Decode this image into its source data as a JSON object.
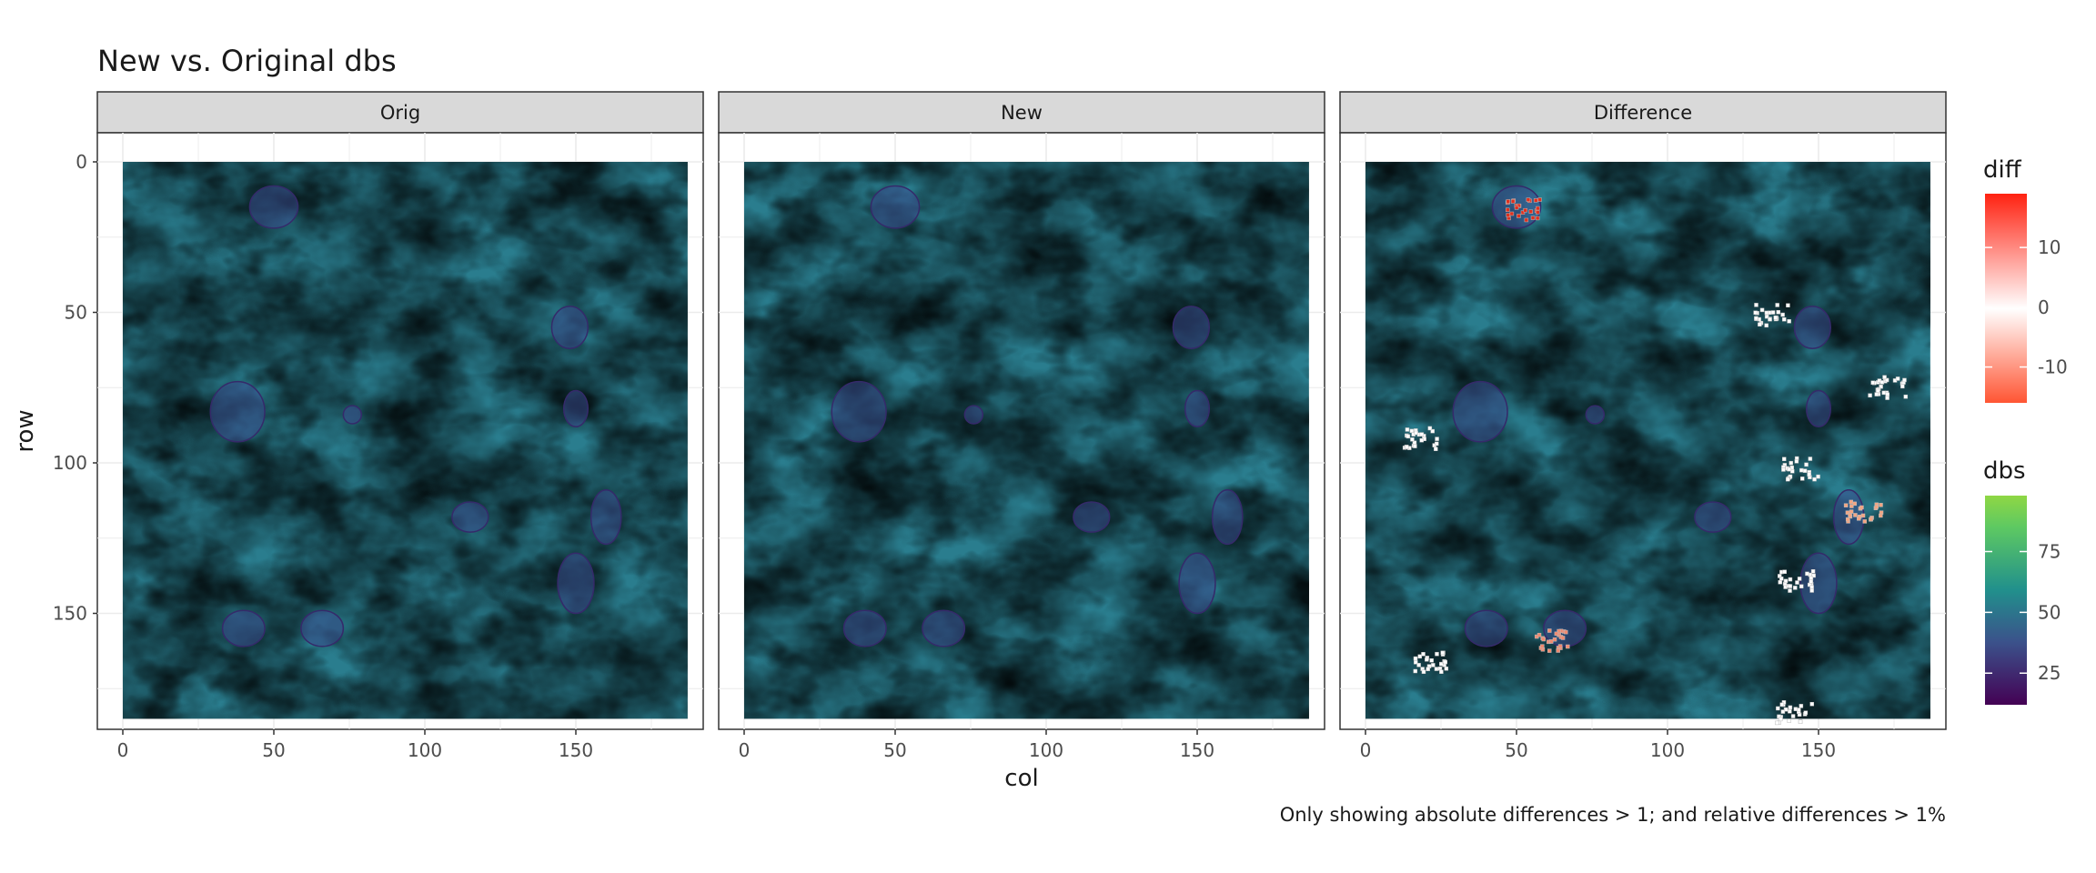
{
  "chart_data": {
    "type": "heatmap",
    "title": "New vs. Original dbs",
    "xlabel": "col",
    "ylabel": "row",
    "caption": "Only showing absolute differences > 1; and relative differences > 1%",
    "facets": [
      "Orig",
      "New",
      "Difference"
    ],
    "x_range": [
      0,
      187
    ],
    "y_range": [
      0,
      185
    ],
    "y_reversed": true,
    "x_ticks": [
      0,
      50,
      100,
      150
    ],
    "y_ticks": [
      0,
      50,
      100,
      150
    ],
    "grid": true,
    "legends": [
      {
        "title": "diff",
        "type": "gradient",
        "range": [
          -16,
          19
        ],
        "ticks": [
          10,
          0,
          -10
        ],
        "colors": [
          "#ff5533",
          "#ffffff",
          "#ff2211"
        ]
      },
      {
        "title": "dbs",
        "type": "gradient",
        "range": [
          12,
          98
        ],
        "ticks": [
          75,
          50,
          25
        ],
        "colors": [
          "#440154",
          "#3b528b",
          "#21908c",
          "#5ec962",
          "#8fd744"
        ]
      }
    ],
    "difference_clusters": [
      {
        "col": 52,
        "row": 16,
        "color": "#e0301e"
      },
      {
        "col": 135,
        "row": 51,
        "color": "#ffffff"
      },
      {
        "col": 173,
        "row": 75,
        "color": "#ffffff"
      },
      {
        "col": 18,
        "row": 92,
        "color": "#ffffff"
      },
      {
        "col": 144,
        "row": 102,
        "color": "#ffffff"
      },
      {
        "col": 165,
        "row": 116,
        "color": "#f4a582"
      },
      {
        "col": 143,
        "row": 139,
        "color": "#ffffff"
      },
      {
        "col": 22,
        "row": 166,
        "color": "#ffffff"
      },
      {
        "col": 62,
        "row": 159,
        "color": "#f08a70"
      },
      {
        "col": 142,
        "row": 183,
        "color": "#ffffff"
      }
    ]
  }
}
